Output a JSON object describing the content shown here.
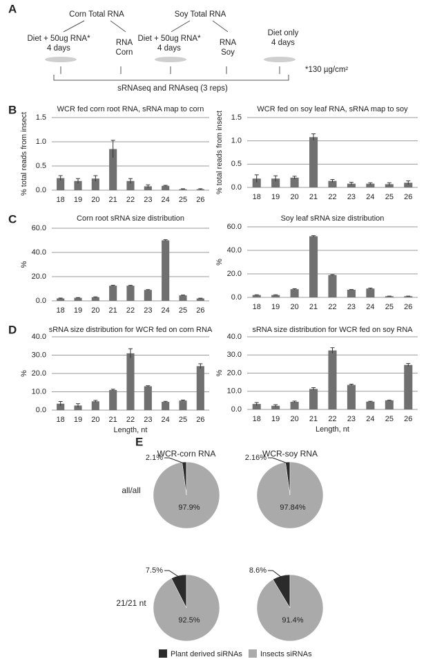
{
  "panel_labels": [
    "A",
    "B",
    "C",
    "D",
    "E"
  ],
  "diagram": {
    "sources": [
      "Corn Total RNA",
      "Soy Total RNA"
    ],
    "groups": [
      [
        "Diet + 50ug RNA*",
        "4 days"
      ],
      [
        "RNA",
        "Corn"
      ],
      [
        "Diet + 50ug RNA*",
        "4 days"
      ],
      [
        "RNA",
        "Soy"
      ],
      [
        "Diet only",
        "4 days"
      ]
    ],
    "footnote": "*130 µg/cm²",
    "bracket": "sRNAseq and RNAseq (3 reps)"
  },
  "pie_grid": {
    "columns": [
      "WCR-corn RNA",
      "WCR-soy RNA"
    ],
    "rows": [
      "all/all",
      "21/21 nt"
    ]
  },
  "pie_legend": {
    "names": [
      "Plant derived siRNAs",
      "Insects siRNAs"
    ],
    "colors": [
      "#2b2b2b",
      "#aaaaaa"
    ]
  },
  "chart_data": [
    {
      "type": "bar",
      "title": "WCR fed corn root RNA, sRNA map to corn",
      "y_label": "% total reads from insect",
      "categories": [
        "18",
        "19",
        "20",
        "21",
        "22",
        "23",
        "24",
        "25",
        "26"
      ],
      "values": [
        0.25,
        0.19,
        0.24,
        0.85,
        0.19,
        0.08,
        0.09,
        0.02,
        0.02
      ],
      "error": [
        0.05,
        0.05,
        0.06,
        0.18,
        0.05,
        0.03,
        0.01,
        0.01,
        0.01
      ],
      "color": "#707070",
      "ylim": [
        0,
        1.5
      ],
      "yticks": [
        {
          "value": 0,
          "label": "0.0"
        },
        0.5,
        {
          "value": 1,
          "label": "1.0"
        },
        1.5
      ],
      "grid": true
    },
    {
      "type": "bar",
      "title": "WCR fed on soy leaf RNA, sRNA map to soy",
      "y_label": "% total reads from insect",
      "categories": [
        "18",
        "19",
        "20",
        "21",
        "22",
        "23",
        "24",
        "25",
        "26"
      ],
      "values": [
        0.19,
        0.19,
        0.21,
        1.08,
        0.14,
        0.08,
        0.08,
        0.07,
        0.1
      ],
      "error": [
        0.08,
        0.06,
        0.03,
        0.07,
        0.03,
        0.03,
        0.02,
        0.03,
        0.04
      ],
      "color": "#707070",
      "ylim": [
        0,
        1.5
      ],
      "yticks": [
        {
          "value": 0,
          "label": "0.0"
        },
        0.5,
        {
          "value": 1,
          "label": "1.0"
        },
        1.5
      ],
      "grid": true
    },
    {
      "type": "bar",
      "title": "Corn root sRNA size distribution",
      "y_label": "%",
      "categories": [
        "18",
        "19",
        "20",
        "21",
        "22",
        "23",
        "24",
        "25",
        "26"
      ],
      "values": [
        2,
        2.5,
        3,
        12.5,
        12.5,
        9,
        50,
        4.5,
        2
      ],
      "error": [
        0.3,
        0.2,
        0.3,
        0.4,
        0.3,
        0.3,
        0.5,
        0.3,
        0.2
      ],
      "color": "#707070",
      "ylim": [
        0,
        60
      ],
      "yticks": [
        {
          "value": 0,
          "label": "0.0"
        },
        {
          "value": 20,
          "label": "20.0"
        },
        {
          "value": 40,
          "label": "40.0"
        },
        {
          "value": 60,
          "label": "60.0"
        }
      ],
      "grid": true
    },
    {
      "type": "bar",
      "title": "Soy leaf sRNA size distribution",
      "y_label": "%",
      "categories": [
        "18",
        "19",
        "20",
        "21",
        "22",
        "23",
        "24",
        "25",
        "26"
      ],
      "values": [
        2,
        2,
        7,
        52,
        19,
        6.5,
        7.5,
        1,
        1
      ],
      "error": [
        0.2,
        0.2,
        0.4,
        0.5,
        0.3,
        0.2,
        0.4,
        0.1,
        0.1
      ],
      "color": "#707070",
      "ylim": [
        0,
        60
      ],
      "yticks": [
        {
          "value": 0,
          "label": "0.0"
        },
        {
          "value": 20,
          "label": "20.0"
        },
        {
          "value": 40,
          "label": "40.0"
        },
        {
          "value": 60,
          "label": "60.0"
        }
      ],
      "grid": true
    },
    {
      "type": "bar",
      "title": "sRNA size distribution for WCR fed on corn RNA",
      "y_label": "%",
      "x_label": "Length, nt",
      "categories": [
        "18",
        "19",
        "20",
        "21",
        "22",
        "23",
        "24",
        "25",
        "26"
      ],
      "values": [
        3.5,
        2.5,
        4.8,
        11,
        31,
        13,
        4.5,
        5.2,
        24
      ],
      "error": [
        1.2,
        1,
        0.5,
        0.4,
        2.5,
        0.3,
        0.3,
        0.3,
        1.3
      ],
      "color": "#707070",
      "ylim": [
        0,
        40
      ],
      "yticks": [
        {
          "value": 0,
          "label": "0.0"
        },
        {
          "value": 10,
          "label": "10.0"
        },
        {
          "value": 20,
          "label": "20.0"
        },
        {
          "value": 30,
          "label": "30.0"
        },
        {
          "value": 40,
          "label": "40.0"
        }
      ],
      "grid": true
    },
    {
      "type": "bar",
      "title": "sRNA size distribution for WCR fed on soy RNA",
      "y_label": "%",
      "x_label": "Length, nt",
      "categories": [
        "18",
        "19",
        "20",
        "21",
        "22",
        "23",
        "24",
        "25",
        "26"
      ],
      "values": [
        3,
        2,
        4.2,
        11.3,
        32.5,
        13.5,
        4.3,
        5,
        24.5
      ],
      "error": [
        0.8,
        0.6,
        0.4,
        0.7,
        1.5,
        0.4,
        0.2,
        0.1,
        0.8
      ],
      "color": "#707070",
      "ylim": [
        0,
        40
      ],
      "yticks": [
        {
          "value": 0,
          "label": "0.0"
        },
        {
          "value": 10,
          "label": "10.0"
        },
        {
          "value": 20,
          "label": "20.0"
        },
        {
          "value": 30,
          "label": "30.0"
        },
        {
          "value": 40,
          "label": "40.0"
        }
      ],
      "grid": true
    },
    {
      "type": "pie",
      "values": [
        2.1,
        97.9
      ],
      "value_labels": [
        "2.1%",
        "97.9%"
      ]
    },
    {
      "type": "pie",
      "values": [
        2.16,
        97.84
      ],
      "value_labels": [
        "2.16%",
        "97.84%"
      ]
    },
    {
      "type": "pie",
      "values": [
        7.5,
        92.5
      ],
      "value_labels": [
        "7.5%",
        "92.5%"
      ]
    },
    {
      "type": "pie",
      "values": [
        8.6,
        91.4
      ],
      "value_labels": [
        "8.6%",
        "91.4%"
      ]
    }
  ]
}
